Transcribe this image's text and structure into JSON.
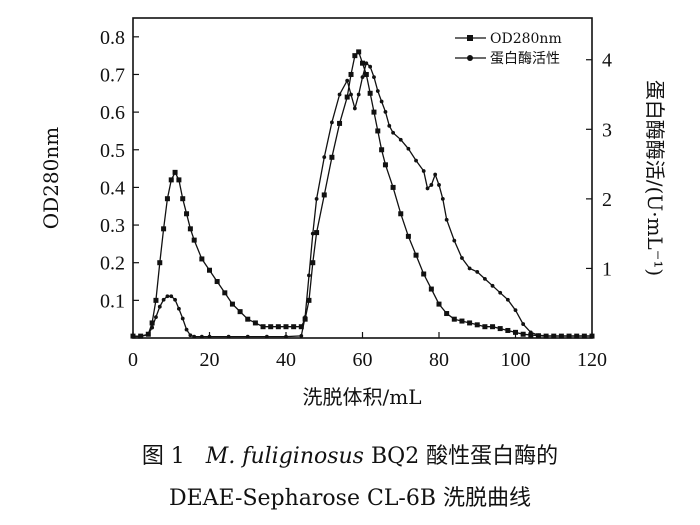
{
  "chart_data": {
    "type": "line",
    "xlabel": "洗脱体积/mL",
    "ylabel_left": "OD280nm",
    "ylabel_right": "蛋白酶酶活/(U·mL⁻¹)",
    "xlim": [
      0,
      120
    ],
    "ylim_left": [
      0,
      0.85
    ],
    "ylim_right": [
      0,
      4.6
    ],
    "x_ticks": [
      0,
      20,
      40,
      60,
      80,
      100,
      120
    ],
    "y_ticks_left": [
      0.1,
      0.2,
      0.3,
      0.4,
      0.5,
      0.6,
      0.7,
      0.8
    ],
    "y_ticks_right": [
      1,
      2,
      3,
      4
    ],
    "legend_position": "top-right",
    "series": [
      {
        "name": "OD280nm",
        "axis": "left",
        "marker": "square",
        "x": [
          0,
          2,
          4,
          5,
          6,
          7,
          8,
          9,
          10,
          11,
          12,
          13,
          14,
          15,
          16,
          18,
          20,
          22,
          24,
          26,
          28,
          30,
          32,
          34,
          36,
          38,
          40,
          42,
          44,
          45,
          46,
          47,
          48,
          50,
          52,
          54,
          56,
          57,
          58,
          59,
          60,
          61,
          62,
          63,
          64,
          65,
          66,
          68,
          70,
          72,
          74,
          76,
          78,
          80,
          82,
          84,
          86,
          88,
          90,
          92,
          94,
          96,
          98,
          100,
          102,
          104,
          106,
          108,
          110,
          112,
          114,
          116,
          118,
          120
        ],
        "y": [
          0.005,
          0.005,
          0.01,
          0.04,
          0.1,
          0.2,
          0.29,
          0.37,
          0.42,
          0.44,
          0.42,
          0.37,
          0.33,
          0.29,
          0.26,
          0.21,
          0.18,
          0.15,
          0.12,
          0.09,
          0.07,
          0.05,
          0.04,
          0.03,
          0.03,
          0.03,
          0.03,
          0.03,
          0.03,
          0.05,
          0.1,
          0.2,
          0.28,
          0.38,
          0.48,
          0.57,
          0.64,
          0.7,
          0.75,
          0.76,
          0.73,
          0.7,
          0.65,
          0.6,
          0.55,
          0.5,
          0.46,
          0.4,
          0.33,
          0.27,
          0.22,
          0.17,
          0.13,
          0.09,
          0.065,
          0.05,
          0.045,
          0.04,
          0.035,
          0.03,
          0.03,
          0.025,
          0.02,
          0.015,
          0.01,
          0.008,
          0.006,
          0.005,
          0.005,
          0.005,
          0.005,
          0.005,
          0.005,
          0.005
        ]
      },
      {
        "name": "蛋白酶活性",
        "axis": "right",
        "marker": "circle",
        "x": [
          0,
          2,
          4,
          5,
          6,
          7,
          8,
          9,
          10,
          11,
          12,
          13,
          14,
          15,
          16,
          18,
          20,
          25,
          30,
          35,
          40,
          44,
          45,
          46,
          47,
          48,
          50,
          52,
          54,
          56,
          57,
          58,
          59,
          60,
          61,
          62,
          63,
          64,
          65,
          66,
          67,
          68,
          70,
          72,
          74,
          76,
          77,
          78,
          79,
          80,
          81,
          82,
          84,
          86,
          88,
          90,
          92,
          94,
          96,
          98,
          100,
          102,
          104,
          106,
          108,
          110,
          112,
          114,
          116,
          118,
          120
        ],
        "y": [
          0.02,
          0.02,
          0.05,
          0.15,
          0.3,
          0.45,
          0.55,
          0.6,
          0.6,
          0.55,
          0.42,
          0.28,
          0.12,
          0.04,
          0.02,
          0.02,
          0.02,
          0.02,
          0.02,
          0.02,
          0.02,
          0.03,
          0.3,
          0.9,
          1.5,
          2.0,
          2.6,
          3.1,
          3.5,
          3.7,
          3.5,
          3.3,
          3.5,
          3.75,
          3.95,
          3.9,
          3.75,
          3.55,
          3.4,
          3.25,
          3.05,
          2.95,
          2.85,
          2.72,
          2.55,
          2.4,
          2.15,
          2.2,
          2.35,
          2.2,
          2.0,
          1.7,
          1.4,
          1.15,
          1.0,
          0.95,
          0.85,
          0.75,
          0.65,
          0.55,
          0.4,
          0.2,
          0.08,
          0.04,
          0.03,
          0.03,
          0.03,
          0.03,
          0.03,
          0.03,
          0.03
        ]
      }
    ]
  },
  "caption": {
    "line1_prefix": "图 1",
    "line1_species": "M. fuliginosus",
    "line1_suffix": "BQ2 酸性蛋白酶的",
    "line2": "DEAE-Sepharose CL-6B 洗脱曲线"
  }
}
